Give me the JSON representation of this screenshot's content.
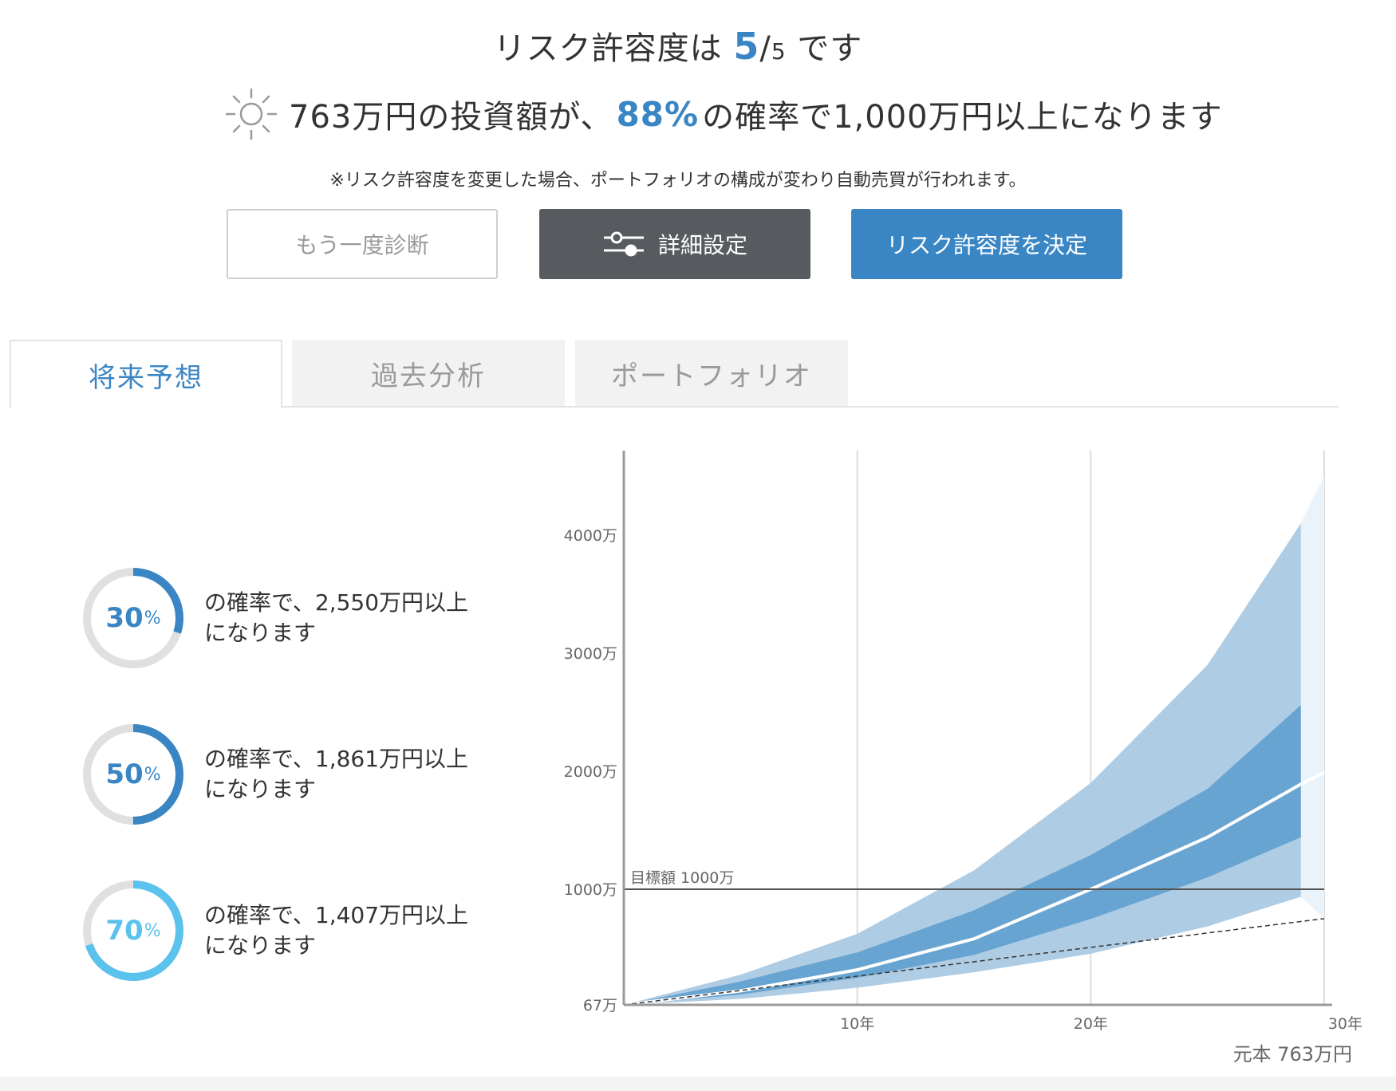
{
  "header": {
    "title_prefix": "リスク許容度は",
    "risk_value": "5",
    "risk_sep": "/",
    "risk_max": "5",
    "title_suffix": "です",
    "prob_prefix": "763万円の投資額が、",
    "prob_value": "88%",
    "prob_suffix": "の確率で1,000万円以上になります",
    "sun_icon": "sun-icon",
    "note": "※リスク許容度を変更した場合、ポートフォリオの構成が変わり自動売買が行われます。"
  },
  "buttons": {
    "rediagnose": "もう一度診断",
    "detail_settings": "詳細設定",
    "settings_icon": "sliders-icon",
    "confirm": "リスク許容度を決定"
  },
  "tabs": [
    {
      "label": "将来予想",
      "active": true
    },
    {
      "label": "過去分析",
      "active": false
    },
    {
      "label": "ポートフォリオ",
      "active": false
    }
  ],
  "probabilities": [
    {
      "pct_num": "30",
      "pct_sign": "%",
      "fraction": 0.3,
      "color": "#3a86c5",
      "line1": "の確率で、2,550万円以上",
      "line2": "になります"
    },
    {
      "pct_num": "50",
      "pct_sign": "%",
      "fraction": 0.5,
      "color": "#3a86c5",
      "line1": "の確率で、1,861万円以上",
      "line2": "になります"
    },
    {
      "pct_num": "70",
      "pct_sign": "%",
      "fraction": 0.7,
      "color": "#5bc2ee",
      "line1": "の確率で、1,407万円以上",
      "line2": "になります"
    }
  ],
  "chart_data": {
    "type": "area",
    "x": [
      0,
      5,
      10,
      15,
      20,
      25,
      29
    ],
    "x_ticks": [
      {
        "value": 10,
        "label": "10年"
      },
      {
        "value": 20,
        "label": "20年"
      },
      {
        "value": 30,
        "label": "30年"
      }
    ],
    "y_ticks": [
      {
        "value": 67,
        "label": "67万"
      },
      {
        "value": 1000,
        "label": "1000万"
      },
      {
        "value": 2000,
        "label": "2000万"
      },
      {
        "value": 3000,
        "label": "3000万"
      },
      {
        "value": 4000,
        "label": "4000万"
      }
    ],
    "xlim": [
      0,
      30
    ],
    "ylim": [
      67,
      4800
    ],
    "grid_x": [
      10,
      20,
      30
    ],
    "series": [
      {
        "values": [
          67,
          310,
          640,
          1160,
          1900,
          2900,
          4100
        ],
        "color": "#aecce4"
      },
      {
        "values": [
          67,
          255,
          490,
          830,
          1290,
          1850,
          2560
        ],
        "color": "#68a4d1"
      },
      {
        "values": [
          67,
          180,
          350,
          600,
          1000,
          1440,
          1890
        ],
        "color": "#ffffff"
      },
      {
        "values": [
          67,
          150,
          285,
          470,
          760,
          1100,
          1440
        ],
        "color": "#68a4d1"
      },
      {
        "values": [
          67,
          115,
          205,
          330,
          480,
          700,
          940
        ],
        "color": "#aecce4"
      }
    ],
    "principal_line": {
      "from": 67,
      "to": 763
    },
    "target": {
      "value": 1000,
      "label": "目標額 1000万"
    },
    "principal_label": "元本 763万円"
  }
}
